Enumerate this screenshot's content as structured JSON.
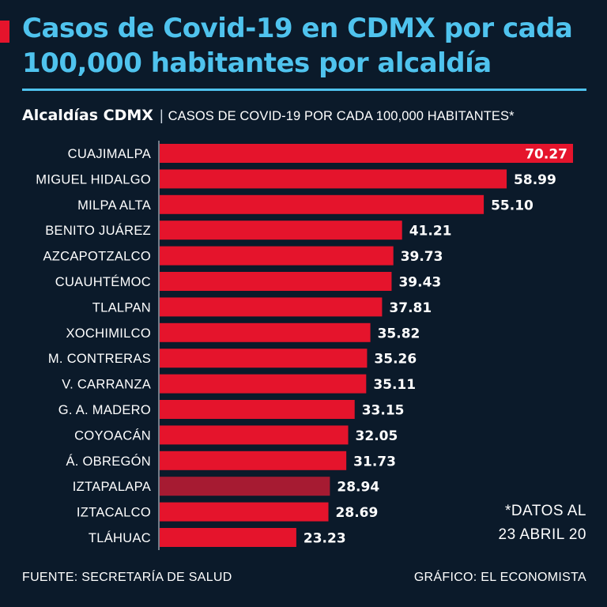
{
  "colors": {
    "background": "#0b1a2a",
    "title": "#4fc3ee",
    "accent": "#e5142c",
    "bar": "#e5142c",
    "bar_highlight": "#a61b32",
    "text": "#ffffff"
  },
  "header": {
    "title": "Casos de Covid-19 en CDMX por cada 100,000 habitantes por alcaldía"
  },
  "subtitle": {
    "brand": "Alcaldías CDMX",
    "separator": "|",
    "unit": "CASOS DE COVID-19 POR CADA 100,000 HABITANTES*"
  },
  "chart_data": {
    "type": "bar",
    "orientation": "horizontal",
    "title": "Casos de Covid-19 en CDMX por cada 100,000 habitantes por alcaldía",
    "xlabel": "",
    "ylabel": "",
    "xlim": [
      0,
      70.27
    ],
    "grid": false,
    "value_labels": [
      "70.27",
      "58.99",
      "55.10",
      "41.21",
      "39.73",
      "39.43",
      "37.81",
      "35.82",
      "35.26",
      "35.11",
      "33.15",
      "32.05",
      "31.73",
      "28.94",
      "28.69",
      "23.23"
    ],
    "categories": [
      "CUAJIMALPA",
      "MIGUEL HIDALGO",
      "MILPA ALTA",
      "BENITO JUÁREZ",
      "AZCAPOTZALCO",
      "CUAUHTÉMOC",
      "TLALPAN",
      "XOCHIMILCO",
      "M. CONTRERAS",
      "V. CARRANZA",
      "G. A. MADERO",
      "COYOACÁN",
      "Á. OBREGÓN",
      "IZTAPALAPA",
      "IZTACALCO",
      "TLÁHUAC"
    ],
    "values": [
      70.27,
      58.99,
      55.1,
      41.21,
      39.73,
      39.43,
      37.81,
      35.82,
      35.26,
      35.11,
      33.15,
      32.05,
      31.73,
      28.94,
      28.69,
      23.23
    ],
    "highlight": [
      "IZTAPALAPA"
    ]
  },
  "note": {
    "line1": "*DATOS AL",
    "line2": "23 ABRIL 20"
  },
  "footer": {
    "source": "FUENTE: SECRETARÍA DE SALUD",
    "credit": "GRÁFICO: EL ECONOMISTA"
  }
}
